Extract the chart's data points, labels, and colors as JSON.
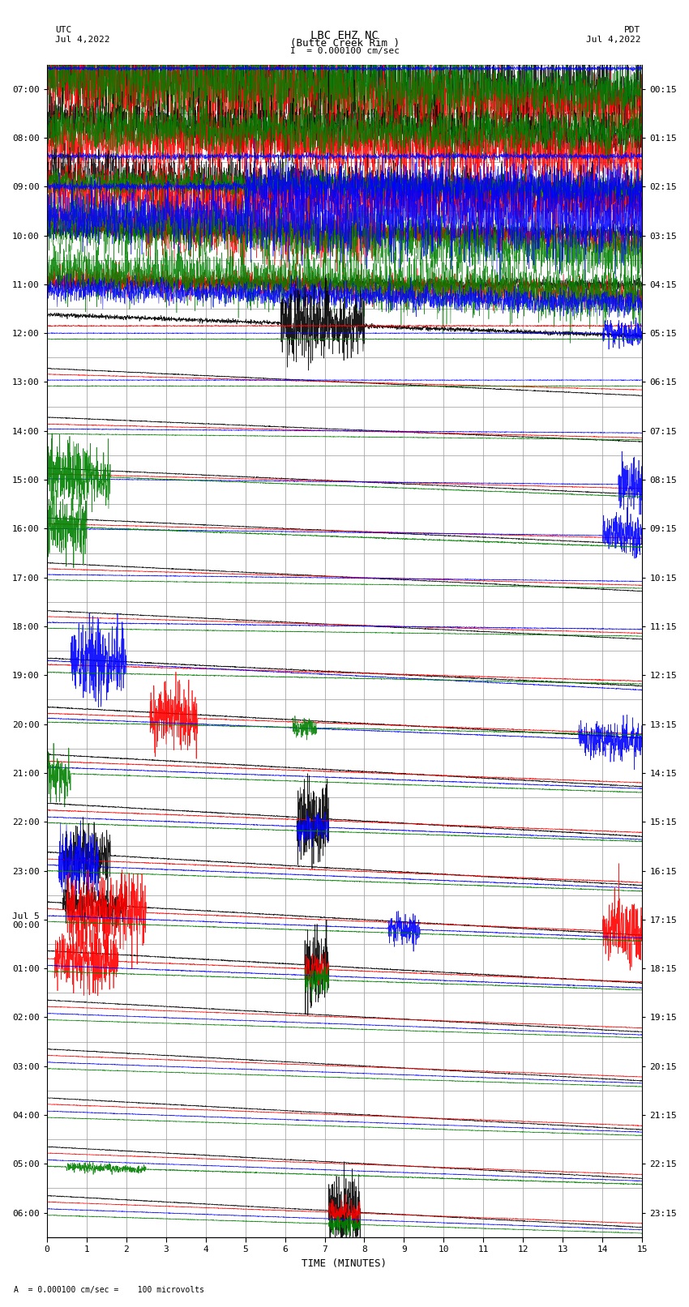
{
  "title_line1": "LBC EHZ NC",
  "title_line2": "(Butte Creek Rim )",
  "scale_label": "I  = 0.000100 cm/sec",
  "utc_label": "UTC",
  "utc_date": "Jul 4,2022",
  "pdt_label": "PDT",
  "pdt_date": "Jul 4,2022",
  "xlabel": "TIME (MINUTES)",
  "bottom_note": "A  = 0.000100 cm/sec =    100 microvolts",
  "left_times_utc": [
    "07:00",
    "08:00",
    "09:00",
    "10:00",
    "11:00",
    "12:00",
    "13:00",
    "14:00",
    "15:00",
    "16:00",
    "17:00",
    "18:00",
    "19:00",
    "20:00",
    "21:00",
    "22:00",
    "23:00",
    "Jul 5\n00:00",
    "01:00",
    "02:00",
    "03:00",
    "04:00",
    "05:00",
    "06:00"
  ],
  "right_times_pdt": [
    "00:15",
    "01:15",
    "02:15",
    "03:15",
    "04:15",
    "05:15",
    "06:15",
    "07:15",
    "08:15",
    "09:15",
    "10:15",
    "11:15",
    "12:15",
    "13:15",
    "14:15",
    "15:15",
    "16:15",
    "17:15",
    "18:15",
    "19:15",
    "20:15",
    "21:15",
    "22:15",
    "23:15"
  ],
  "n_traces": 24,
  "x_min": 0,
  "x_max": 15,
  "bg_color": "#ffffff",
  "grid_color": "#999999",
  "font_size_labels": 8,
  "font_size_title": 10,
  "n_pts": 3000
}
